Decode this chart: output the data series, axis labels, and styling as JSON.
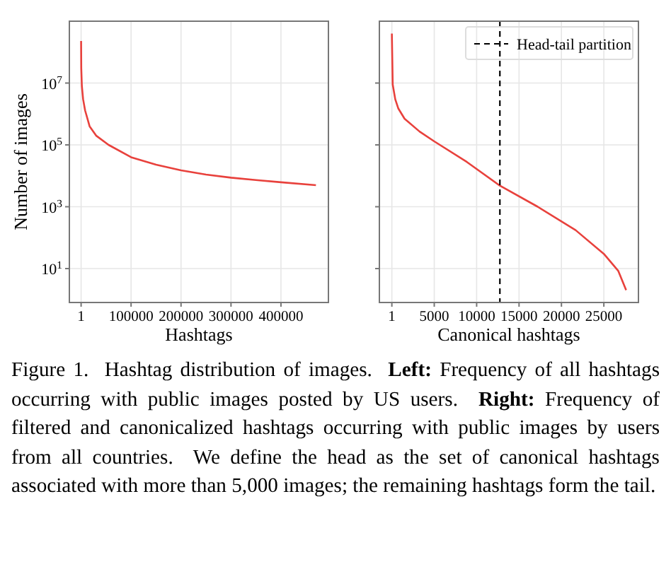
{
  "chart_data": [
    {
      "type": "line",
      "xlabel": "Hashtags",
      "ylabel": "Number of images",
      "log": "y",
      "grid": true,
      "xlim": [
        -23500,
        495000
      ],
      "xticks": [
        1,
        100000,
        200000,
        300000,
        400000
      ],
      "ylim": [
        0.8,
        1000000000
      ],
      "yticks": [
        {
          "value": 10,
          "label": "10$^{1}$"
        },
        {
          "value": 1000,
          "label": "10$^{3}$"
        },
        {
          "value": 100000,
          "label": "10$^{5}$"
        },
        {
          "value": 10000000,
          "label": "10$^{7}$"
        }
      ],
      "series": [
        {
          "color": "#e8413c",
          "x": [
            1,
            300,
            1500,
            4000,
            8000,
            17000,
            30000,
            55000,
            100000,
            150000,
            200000,
            250000,
            300000,
            350000,
            400000,
            470000
          ],
          "values": [
            230000000,
            30000000,
            8000000,
            3000000,
            1300000,
            400000,
            200000,
            100000,
            40000,
            23000,
            15000,
            11000,
            8700,
            7300,
            6200,
            5000
          ]
        }
      ],
      "annotations": [
        "Figure 1.  Hashtag distribution of images.  Left: Frequency of all hashtags occurring with public images posted by US users.  Right: Frequency of filtered and canonicalized hashtags occurring with public images by users from all countries.  We define the head as the set of canonical hashtags associated with more than 5,000 images; the remaining hashtags form the tail."
      ]
    },
    {
      "type": "line",
      "xlabel": "Canonical hashtags",
      "log": "y",
      "grid": true,
      "tick_labels": "x",
      "legend": "top right",
      "xlim": [
        -1470,
        29080
      ],
      "xticks": [
        1,
        5000,
        10000,
        15000,
        20000,
        25000
      ],
      "ylim": [
        0.8,
        1000000000
      ],
      "yticks": [
        {
          "value": 10,
          "label": null
        },
        {
          "value": 1000,
          "label": null
        },
        {
          "value": 100000,
          "label": null
        },
        {
          "value": 10000000,
          "label": null
        }
      ],
      "ref_lines": [
        {
          "axis": "x",
          "value": 12740,
          "label": "Head-tail partition",
          "color": "#000000",
          "line_style": "dashed"
        }
      ],
      "series": [
        {
          "color": "#e8413c",
          "x": [
            1,
            100,
            400,
            764,
            1500,
            3270,
            5000,
            8850,
            12740,
            17200,
            21670,
            25000,
            26690,
            27630
          ],
          "values": [
            400000000,
            9000000,
            3000000,
            1500000,
            700000,
            270000,
            130000,
            28000,
            4800,
            1000,
            175,
            30,
            8.5,
            2
          ]
        }
      ]
    }
  ]
}
